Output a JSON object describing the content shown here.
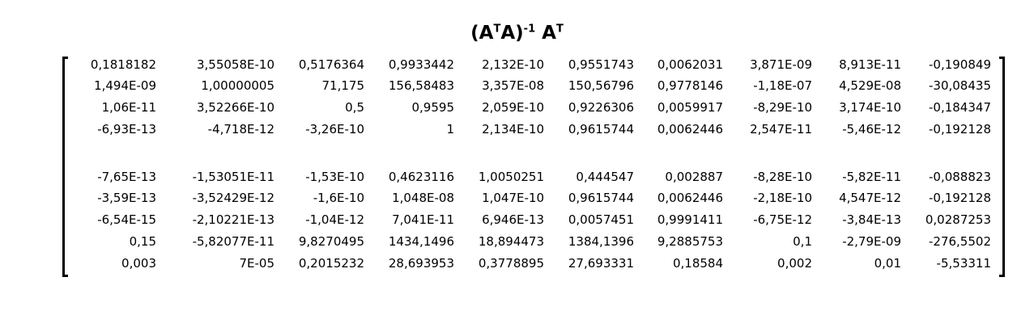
{
  "title": {
    "base1": "(A",
    "sup1": "T",
    "base2": "A)",
    "sup2": "-1",
    "base3": " A",
    "sup3": "T"
  },
  "matrix": {
    "rows": [
      [
        "0,1818182",
        "3,55058E-10",
        "0,5176364",
        "0,9933442",
        "2,132E-10",
        "0,9551743",
        "0,0062031",
        "3,871E-09",
        "8,913E-11",
        "-0,190849"
      ],
      [
        "1,494E-09",
        "1,00000005",
        "71,175",
        "156,58483",
        "3,357E-08",
        "150,56796",
        "0,9778146",
        "-1,18E-07",
        "4,529E-08",
        "-30,08435"
      ],
      [
        "1,06E-11",
        "3,52266E-10",
        "0,5",
        "0,9595",
        "2,059E-10",
        "0,9226306",
        "0,0059917",
        "-8,29E-10",
        "3,174E-10",
        "-0,184347"
      ],
      [
        "-6,93E-13",
        "-4,718E-12",
        "-3,26E-10",
        "1",
        "2,134E-10",
        "0,9615744",
        "0,0062446",
        "2,547E-11",
        "-5,46E-12",
        "-0,192128"
      ],
      [
        "-7,65E-13",
        "-1,53051E-11",
        "-1,53E-10",
        "0,4623116",
        "1,0050251",
        "0,444547",
        "0,002887",
        "-8,28E-10",
        "-5,82E-11",
        "-0,088823"
      ],
      [
        "-3,59E-13",
        "-3,52429E-12",
        "-1,6E-10",
        "1,048E-08",
        "1,047E-10",
        "0,9615744",
        "0,0062446",
        "-2,18E-10",
        "4,547E-12",
        "-0,192128"
      ],
      [
        "-6,54E-15",
        "-2,10221E-13",
        "-1,04E-12",
        "7,041E-11",
        "6,946E-13",
        "0,0057451",
        "0,9991411",
        "-6,75E-12",
        "-3,84E-13",
        "0,0287253"
      ],
      [
        "0,15",
        "-5,82077E-11",
        "9,8270495",
        "1434,1496",
        "18,894473",
        "1384,1396",
        "9,2885753",
        "0,1",
        "-2,79E-09",
        "-276,5502"
      ],
      [
        "0,003",
        "7E-05",
        "0,2015232",
        "28,693953",
        "0,3778895",
        "27,693331",
        "0,18584",
        "0,002",
        "0,01",
        "-5,53311"
      ]
    ]
  }
}
